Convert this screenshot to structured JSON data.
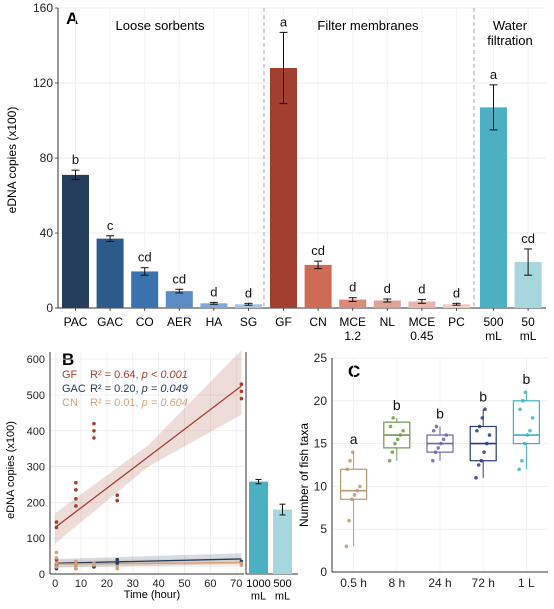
{
  "chart_data": [
    {
      "panel": "A",
      "type": "bar",
      "ylabel": "eDNA copies (x100)",
      "ylim": [
        0,
        160
      ],
      "yticks": [
        0,
        40,
        80,
        120,
        160
      ],
      "grid": true,
      "groups": [
        "Loose sorbents",
        "Filter membranes",
        "Water filtration"
      ],
      "group_titles": [
        "Loose sorbents",
        "Filter membranes",
        "Water\nfiltration"
      ],
      "categories": [
        "PAC",
        "GAC",
        "CO",
        "AER",
        "HA",
        "SG",
        "GF",
        "CN",
        "MCE\n1.2",
        "NL",
        "MCE\n0.45",
        "PC",
        "500\nmL",
        "50\nmL"
      ],
      "values": [
        71,
        37,
        19.5,
        9,
        2.5,
        2,
        128,
        23,
        4.5,
        4,
        3.5,
        2,
        107,
        24.5
      ],
      "errors": [
        2.5,
        1.5,
        2,
        1,
        0.5,
        0.5,
        19,
        2,
        1,
        0.8,
        1,
        0.5,
        12,
        7
      ],
      "letters": [
        "b",
        "c",
        "cd",
        "cd",
        "d",
        "d",
        "a",
        "cd",
        "d",
        "d",
        "d",
        "d",
        "a",
        "cd"
      ],
      "colors": [
        "#243d5c",
        "#2d5a8c",
        "#3a72ad",
        "#5b8cc5",
        "#7fa8d6",
        "#a8c3e4",
        "#a33f2e",
        "#cf6a54",
        "#d98a79",
        "#e0a295",
        "#e7b5aa",
        "#efcbc3",
        "#4bb0c2",
        "#a6d6de"
      ],
      "group_index": [
        0,
        0,
        0,
        0,
        0,
        0,
        1,
        1,
        1,
        1,
        1,
        1,
        2,
        2
      ]
    },
    {
      "panel": "B",
      "type": "scatter",
      "xlabel": "Time (hour)",
      "ylabel": "eDNA copies (x100)",
      "xlim": [
        -2,
        73
      ],
      "ylim": [
        0,
        620
      ],
      "xticks": [
        0,
        10,
        20,
        30,
        40,
        50,
        60,
        70
      ],
      "yticks": [
        0,
        100,
        200,
        300,
        400,
        500,
        600
      ],
      "legend": [
        {
          "name": "GF",
          "r2": "R² = 0.64, ",
          "p": "p < 0.001",
          "color": "#a33f2e"
        },
        {
          "name": "GAC",
          "r2": "R² = 0.20, ",
          "p": "p = 0.049",
          "color": "#243d5c"
        },
        {
          "name": "CN",
          "r2": "R² = 0.01, ",
          "p": "p = 0.604",
          "color": "#d4a27a"
        }
      ],
      "series": [
        {
          "name": "GF",
          "color": "#a33f2e",
          "points": [
            [
              0.5,
              145
            ],
            [
              0.5,
              130
            ],
            [
              0.5,
              40
            ],
            [
              0.5,
              30
            ],
            [
              8,
              255
            ],
            [
              8,
              235
            ],
            [
              8,
              210
            ],
            [
              8,
              190
            ],
            [
              15,
              420
            ],
            [
              15,
              400
            ],
            [
              15,
              380
            ],
            [
              24,
              220
            ],
            [
              24,
              205
            ],
            [
              72,
              530
            ],
            [
              72,
              510
            ],
            [
              72,
              490
            ]
          ],
          "fit": [
            [
              0,
              130
            ],
            [
              72,
              525
            ]
          ],
          "ci_lower": [
            [
              0,
              85
            ],
            [
              36,
              300
            ],
            [
              72,
              445
            ]
          ],
          "ci_upper": [
            [
              0,
              170
            ],
            [
              36,
              360
            ],
            [
              72,
              625
            ]
          ]
        },
        {
          "name": "GAC",
          "color": "#243d5c",
          "points": [
            [
              0.5,
              25
            ],
            [
              0.5,
              20
            ],
            [
              0.5,
              15
            ],
            [
              8,
              25
            ],
            [
              8,
              15
            ],
            [
              15,
              20
            ],
            [
              24,
              40
            ],
            [
              24,
              30
            ],
            [
              72,
              35
            ]
          ],
          "fit": [
            [
              0,
              30
            ],
            [
              72,
              42
            ]
          ],
          "ci_lower": [
            [
              0,
              18
            ],
            [
              72,
              28
            ]
          ],
          "ci_upper": [
            [
              0,
              42
            ],
            [
              72,
              58
            ]
          ]
        },
        {
          "name": "CN",
          "color": "#d4a27a",
          "points": [
            [
              0.5,
              60
            ],
            [
              0.5,
              45
            ],
            [
              0.5,
              30
            ],
            [
              0.5,
              20
            ],
            [
              8,
              35
            ],
            [
              8,
              25
            ],
            [
              8,
              15
            ],
            [
              15,
              30
            ],
            [
              15,
              25
            ],
            [
              24,
              20
            ],
            [
              24,
              15
            ],
            [
              72,
              30
            ],
            [
              72,
              25
            ]
          ],
          "fit": [
            [
              0,
              28
            ],
            [
              72,
              32
            ]
          ],
          "ci_lower": [
            [
              0,
              18
            ],
            [
              72,
              20
            ]
          ],
          "ci_upper": [
            [
              0,
              38
            ],
            [
              72,
              45
            ]
          ]
        }
      ],
      "inset_bars": {
        "categories": [
          "1000\nmL",
          "500\nmL"
        ],
        "values": [
          258,
          180
        ],
        "errors": [
          6,
          15
        ],
        "colors": [
          "#4bb0c2",
          "#a6d6de"
        ]
      }
    },
    {
      "panel": "C",
      "type": "box",
      "ylabel": "Number of fish taxa",
      "ylim": [
        0,
        25
      ],
      "yticks": [
        0,
        5,
        10,
        15,
        20,
        25
      ],
      "categories": [
        "0.5 h",
        "8 h",
        "24 h",
        "72 h",
        "1 L"
      ],
      "letters": [
        "a",
        "b",
        "b",
        "b",
        "b"
      ],
      "colors": [
        "#b89a72",
        "#6f9a4f",
        "#6b67a8",
        "#283c7a",
        "#3fb3c2"
      ],
      "boxes": [
        {
          "min": 3,
          "q1": 8.5,
          "median": 9.5,
          "q3": 12,
          "max": 14,
          "points": [
            3,
            6,
            8.5,
            9,
            9.5,
            10,
            12,
            13,
            14
          ]
        },
        {
          "min": 13,
          "q1": 14.5,
          "median": 16,
          "q3": 17.5,
          "max": 18,
          "points": [
            13,
            14,
            15,
            15.5,
            16,
            16.5,
            17,
            18
          ]
        },
        {
          "min": 13,
          "q1": 14,
          "median": 15,
          "q3": 16,
          "max": 17,
          "points": [
            13,
            14,
            14.5,
            15,
            15.5,
            16,
            16.5,
            17
          ]
        },
        {
          "min": 11,
          "q1": 13,
          "median": 15,
          "q3": 17,
          "max": 19,
          "points": [
            11,
            12.5,
            13,
            14,
            15,
            16,
            16.5,
            17,
            18,
            19
          ]
        },
        {
          "min": 12,
          "q1": 15,
          "median": 16,
          "q3": 20,
          "max": 21,
          "points": [
            12,
            13,
            15,
            16,
            16.5,
            18,
            19,
            20,
            21
          ]
        }
      ]
    }
  ],
  "panel_labels": {
    "a": "A",
    "b": "B",
    "c": "C"
  },
  "b_axis_labels": {
    "xlabel": "Time (hour)",
    "ylabel": "eDNA copies (x100)"
  },
  "c_axis_labels": {
    "ylabel": "Number of fish taxa"
  },
  "a_axis_labels": {
    "ylabel": "eDNA copies (x100)"
  }
}
